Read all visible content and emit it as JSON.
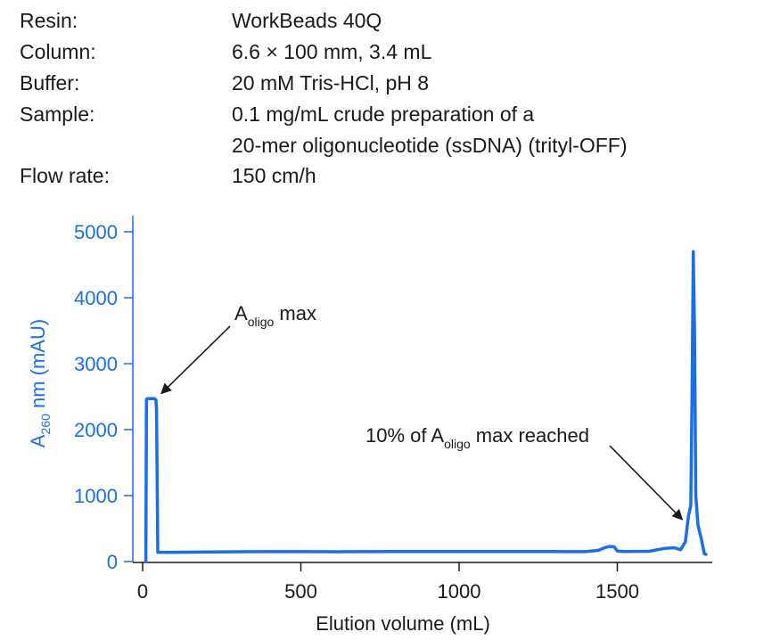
{
  "meta": [
    {
      "label": "Resin:",
      "value": "WorkBeads 40Q"
    },
    {
      "label": "Column:",
      "value": "6.6 × 100 mm, 3.4 mL"
    },
    {
      "label": "Buffer:",
      "value": "20 mM Tris-HCl, pH 8"
    },
    {
      "label": "Sample:",
      "value": "0.1 mg/mL crude preparation of a"
    },
    {
      "label": "",
      "value": "20-mer oligonucleotide (ssDNA) (trityl-OFF)"
    },
    {
      "label": "Flow rate:",
      "value": "150 cm/h"
    }
  ],
  "chart_data": {
    "type": "line",
    "xlabel": "Elution volume (mL)",
    "ylabel": {
      "prefix": "A",
      "subscript": "260",
      "suffix": " nm (mAU)"
    },
    "xlim": [
      0,
      1800
    ],
    "ylim": [
      0,
      5000
    ],
    "x_ticks": [
      0,
      500,
      1000,
      1500
    ],
    "y_ticks": [
      0,
      1000,
      2000,
      3000,
      4000,
      5000
    ],
    "grid": false,
    "colors": {
      "series": "#1a6fe8",
      "axis_y": "#1a6fe8",
      "axis_x": "#1a1a1a",
      "annotation": "#1a1a1a"
    },
    "series": [
      {
        "x": [
          10,
          12,
          15,
          30,
          38,
          42,
          44,
          48,
          100,
          200,
          300,
          400,
          500,
          600,
          700,
          800,
          900,
          1000,
          1100,
          1200,
          1300,
          1400,
          1440,
          1460,
          1475,
          1490,
          1500,
          1520,
          1600,
          1650,
          1680,
          1700,
          1715,
          1725,
          1732,
          1736,
          1740,
          1744,
          1748,
          1755,
          1765,
          1775,
          1780
        ],
        "y": [
          0,
          2460,
          2470,
          2470,
          2470,
          2450,
          2300,
          140,
          140,
          145,
          148,
          150,
          150,
          148,
          150,
          152,
          152,
          152,
          152,
          152,
          152,
          150,
          170,
          210,
          230,
          225,
          160,
          152,
          155,
          200,
          210,
          180,
          300,
          700,
          850,
          2500,
          4700,
          3500,
          1000,
          550,
          350,
          120,
          110
        ]
      }
    ],
    "annotations": [
      {
        "prefix": "A",
        "subscript": "oligo",
        "suffix": " max",
        "point": [
          42,
          2520
        ]
      },
      {
        "prefix": "10% of A",
        "subscript": "oligo",
        "suffix": " max reached",
        "point": [
          1728,
          690
        ]
      }
    ]
  }
}
